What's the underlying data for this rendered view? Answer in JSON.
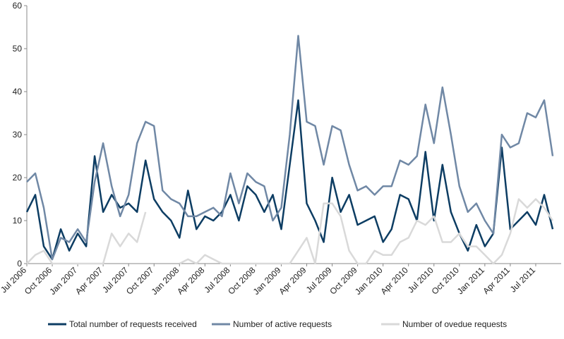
{
  "chart_data": {
    "type": "line",
    "categories": [
      "Jul 2006",
      null,
      null,
      "Oct 2006",
      null,
      null,
      "Jan 2007",
      null,
      null,
      "Apr 2007",
      null,
      null,
      "Jul 2007",
      null,
      null,
      "Oct 2007",
      null,
      null,
      "Jan 2008",
      null,
      null,
      "Apr 2008",
      null,
      null,
      "Jul 2008",
      null,
      null,
      "Oct 2008",
      null,
      null,
      "Jan 2009",
      null,
      null,
      "Apr 2009",
      null,
      null,
      "Jul 2009",
      null,
      null,
      "Oct 2009",
      null,
      null,
      "Jan 2010",
      null,
      null,
      "Apr 2010",
      null,
      null,
      "Jul 2010",
      null,
      null,
      "Oct 2010",
      null,
      null,
      "Jan 2011",
      null,
      null,
      "Apr 2011",
      null,
      null,
      "Jul 2011",
      null,
      null
    ],
    "series": [
      {
        "name": "Total number of requests received",
        "color": "#0d3d63",
        "values": [
          12,
          16,
          4,
          1,
          8,
          3,
          7,
          4,
          25,
          12,
          16,
          13,
          14,
          12,
          24,
          15,
          12,
          10,
          6,
          17,
          8,
          11,
          10,
          12,
          16,
          10,
          18,
          16,
          12,
          16,
          8,
          23,
          38,
          14,
          10,
          5,
          20,
          12,
          16,
          9,
          10,
          11,
          5,
          8,
          16,
          15,
          10,
          26,
          10,
          23,
          12,
          7,
          3,
          9,
          4,
          7,
          27,
          8,
          10,
          12,
          9,
          16,
          8
        ]
      },
      {
        "name": "Number of active requests",
        "color": "#7088a5",
        "values": [
          19,
          21,
          13,
          1,
          6,
          5,
          8,
          5,
          19,
          28,
          18,
          11,
          16,
          28,
          33,
          32,
          17,
          15,
          14,
          11,
          11,
          12,
          13,
          11,
          21,
          14,
          21,
          19,
          18,
          10,
          13,
          30,
          53,
          33,
          32,
          23,
          32,
          31,
          23,
          17,
          18,
          16,
          18,
          18,
          24,
          23,
          25,
          37,
          28,
          41,
          30,
          18,
          12,
          14,
          10,
          7,
          30,
          27,
          28,
          35,
          34,
          38,
          25
        ]
      },
      {
        "name": "Number of ovedue requests",
        "color": "#d9d9d9",
        "values": [
          0,
          2,
          3,
          0,
          0,
          0,
          0,
          0,
          0,
          0,
          7,
          4,
          7,
          5,
          12,
          null,
          null,
          null,
          0,
          1,
          0,
          2,
          1,
          0,
          0,
          0,
          0,
          0,
          0,
          0,
          0,
          0,
          3,
          6,
          0,
          14,
          14,
          11,
          3,
          0,
          0,
          3,
          2,
          2,
          5,
          6,
          10,
          9,
          11,
          5,
          5,
          7,
          4,
          4,
          2,
          0,
          2,
          7,
          15,
          13,
          15,
          13,
          10
        ]
      }
    ],
    "ylim": [
      0,
      60
    ],
    "yticks": [
      0,
      10,
      20,
      30,
      40,
      50,
      60
    ],
    "grid": false,
    "legend": "bottom"
  }
}
